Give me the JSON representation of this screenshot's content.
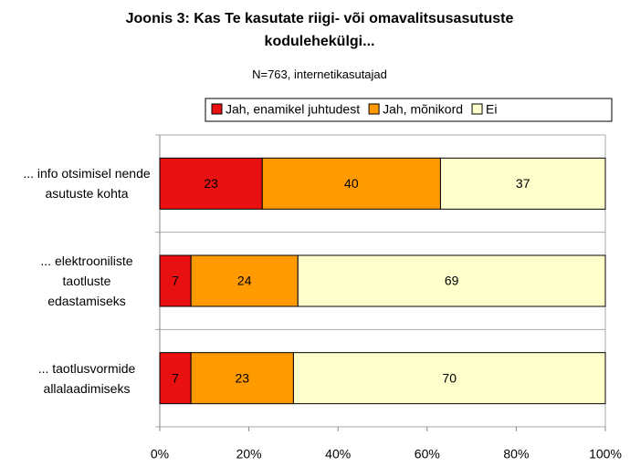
{
  "chart_data": {
    "type": "stacked_barh",
    "title": "Joonis 3: Kas Te kasutate riigi- või omavalitsusasutuste kodulehekülgi...",
    "subtitle": "N=763, internetikasutajad",
    "categories": [
      "... info otsimisel nende asutuste kohta",
      "... elektrooniliste taotluste edastamiseks",
      "... taotlusvormide allalaadimiseks"
    ],
    "series": [
      {
        "name": "Jah, enamikel juhtudest",
        "color": "#e81010",
        "values": [
          23,
          7,
          7
        ]
      },
      {
        "name": "Jah, mõnikord",
        "color": "#ff9a00",
        "values": [
          40,
          24,
          23
        ]
      },
      {
        "name": "Ei",
        "color": "#ffffcc",
        "values": [
          37,
          69,
          70
        ]
      }
    ],
    "xlim": [
      0,
      100
    ],
    "xticks": [
      {
        "value": 0,
        "label": "0%"
      },
      {
        "value": 20,
        "label": "20%"
      },
      {
        "value": 40,
        "label": "40%"
      },
      {
        "value": 60,
        "label": "60%"
      },
      {
        "value": 80,
        "label": "80%"
      },
      {
        "value": 100,
        "label": "100%"
      }
    ],
    "legend": "top"
  }
}
